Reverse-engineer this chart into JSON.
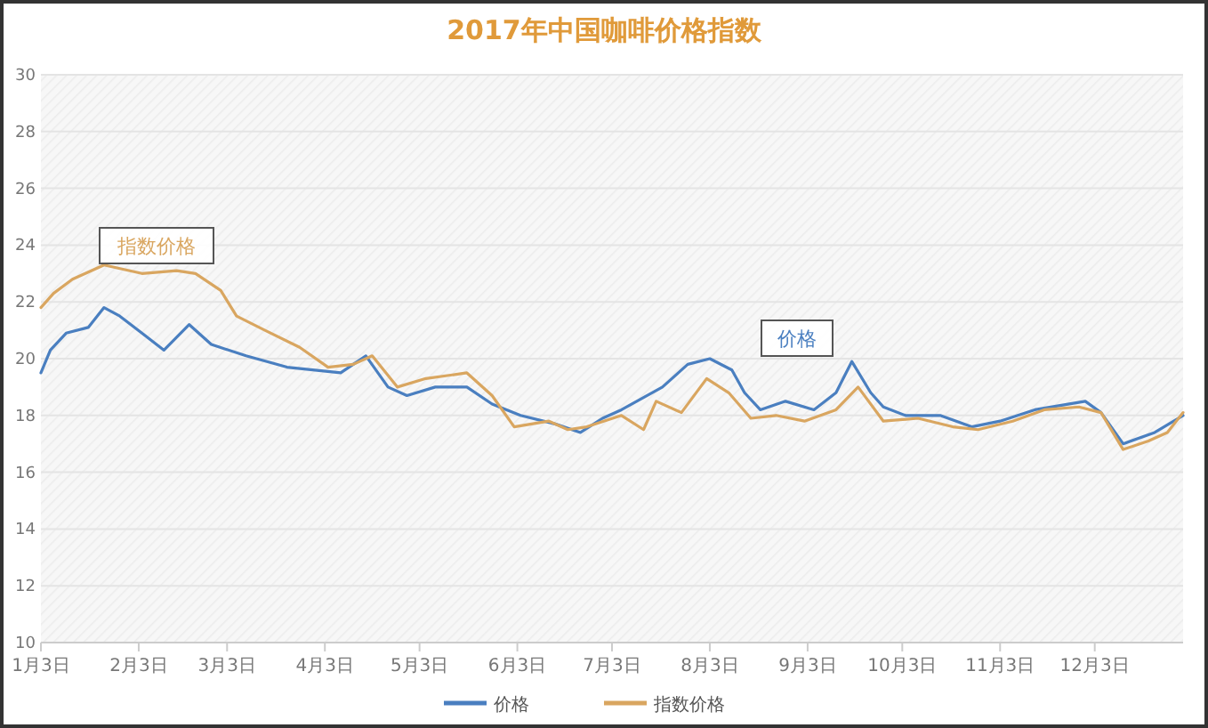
{
  "chart_data": {
    "type": "line",
    "title": "2017年中国咖啡价格指数",
    "annotations": [
      "指数价格",
      "价格"
    ],
    "xlim": [
      "--01-03",
      "--12-31"
    ],
    "xticks": [
      {
        "value": "--01-03",
        "label": "1月3日"
      },
      {
        "value": "--02-03",
        "label": "2月3日"
      },
      {
        "value": "--03-03",
        "label": "3月3日"
      },
      {
        "value": "--04-03",
        "label": "4月3日"
      },
      {
        "value": "--05-03",
        "label": "5月3日"
      },
      {
        "value": "--06-03",
        "label": "6月3日"
      },
      {
        "value": "--07-03",
        "label": "7月3日"
      },
      {
        "value": "--08-03",
        "label": "8月3日"
      },
      {
        "value": "--09-03",
        "label": "9月3日"
      },
      {
        "value": "--10-03",
        "label": "10月3日"
      },
      {
        "value": "--11-03",
        "label": "11月3日"
      },
      {
        "value": "--12-03",
        "label": "12月3日"
      }
    ],
    "ylim": [
      10,
      30
    ],
    "yticks": [
      10,
      12,
      14,
      16,
      18,
      20,
      22,
      24,
      26,
      28,
      30
    ],
    "grid": "y",
    "legend": "bottom",
    "marker": "none",
    "line_style": "solid",
    "series": [
      {
        "name": "价格",
        "color": "#4a7fc0",
        "x": [
          "--01-03",
          "--01-06",
          "--01-11",
          "--01-18",
          "--01-23",
          "--01-28",
          "--02-04",
          "--02-11",
          "--02-19",
          "--02-26",
          "--03-09",
          "--03-22",
          "--04-08",
          "--04-16",
          "--04-23",
          "--04-29",
          "--05-08",
          "--05-18",
          "--05-26",
          "--06-04",
          "--06-15",
          "--06-23",
          "--06-30",
          "--07-06",
          "--07-19",
          "--07-27",
          "--08-03",
          "--08-10",
          "--08-14",
          "--08-19",
          "--08-27",
          "--09-05",
          "--09-12",
          "--09-17",
          "--09-23",
          "--09-27",
          "--10-04",
          "--10-15",
          "--10-25",
          "--11-03",
          "--11-14",
          "--11-30",
          "--12-05",
          "--12-12",
          "--12-22",
          "--12-31"
        ],
        "values": [
          19.5,
          20.3,
          20.9,
          21.1,
          21.8,
          21.5,
          20.9,
          20.3,
          21.2,
          20.5,
          20.1,
          19.7,
          19.5,
          20.1,
          19.0,
          18.7,
          19.0,
          19.0,
          18.4,
          18.0,
          17.7,
          17.4,
          17.9,
          18.2,
          19.0,
          19.8,
          20.0,
          19.6,
          18.8,
          18.2,
          18.5,
          18.2,
          18.8,
          19.9,
          18.8,
          18.3,
          18.0,
          18.0,
          17.6,
          17.8,
          18.2,
          18.5,
          18.1,
          17.0,
          17.4,
          18.0
        ]
      },
      {
        "name": "指数价格",
        "color": "#d9a660",
        "x": [
          "--01-03",
          "--01-07",
          "--01-13",
          "--01-23",
          "--02-04",
          "--02-15",
          "--02-21",
          "--03-01",
          "--03-06",
          "--03-15",
          "--03-26",
          "--04-04",
          "--04-12",
          "--04-18",
          "--04-26",
          "--05-05",
          "--05-18",
          "--05-26",
          "--06-02",
          "--06-13",
          "--06-19",
          "--06-25",
          "--07-06",
          "--07-13",
          "--07-17",
          "--07-25",
          "--08-02",
          "--08-09",
          "--08-16",
          "--08-24",
          "--09-02",
          "--09-12",
          "--09-19",
          "--09-27",
          "--10-08",
          "--10-19",
          "--10-27",
          "--11-07",
          "--11-17",
          "--11-28",
          "--12-05",
          "--12-12",
          "--12-20",
          "--12-26",
          "--12-31"
        ],
        "values": [
          21.8,
          22.3,
          22.8,
          23.3,
          23.0,
          23.1,
          23.0,
          22.4,
          21.5,
          21.0,
          20.4,
          19.7,
          19.8,
          20.1,
          19.0,
          19.3,
          19.5,
          18.7,
          17.6,
          17.8,
          17.5,
          17.6,
          18.0,
          17.5,
          18.5,
          18.1,
          19.3,
          18.8,
          17.9,
          18.0,
          17.8,
          18.2,
          19.0,
          17.8,
          17.9,
          17.6,
          17.5,
          17.8,
          18.2,
          18.3,
          18.1,
          16.8,
          17.1,
          17.4,
          18.1
        ]
      }
    ]
  }
}
